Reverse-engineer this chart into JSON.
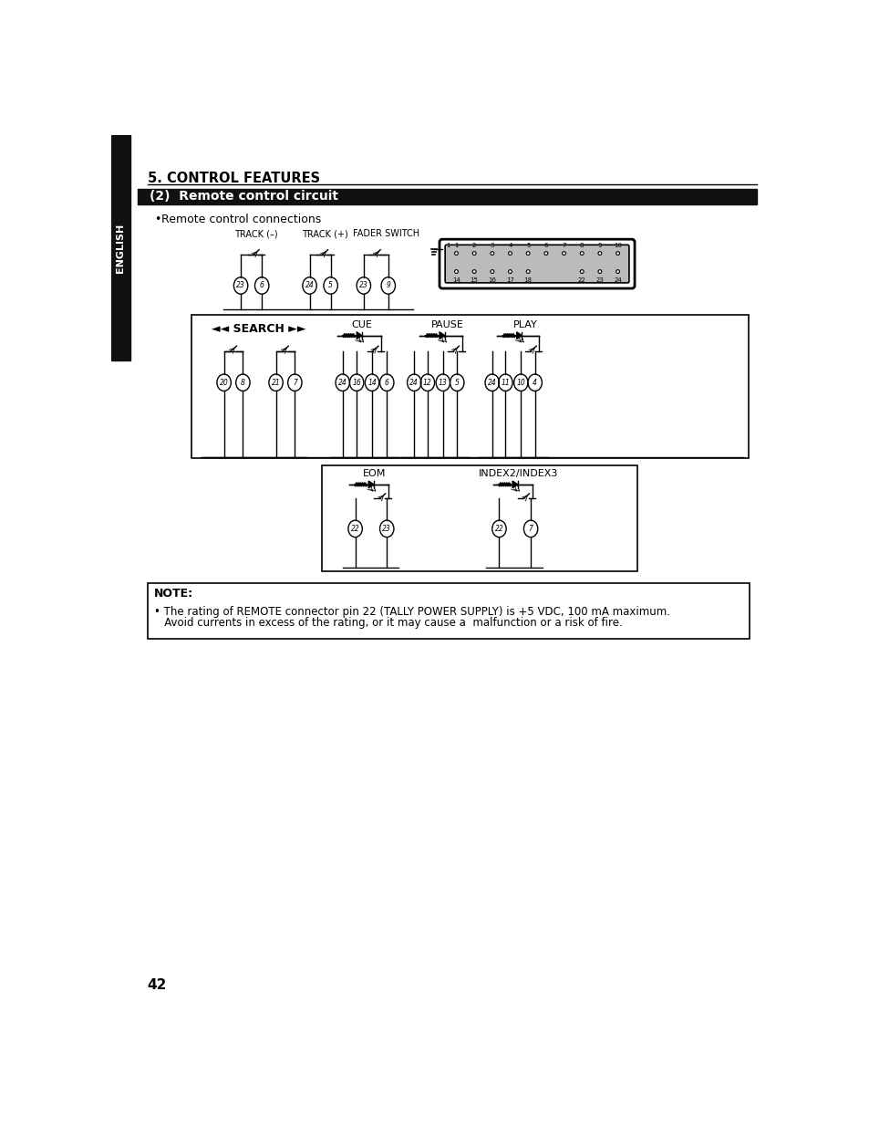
{
  "page_title": "5. CONTROL FEATURES",
  "section_title": "(2)  Remote control circuit",
  "bullet_text": "Remote control connections",
  "note_title": "NOTE:",
  "note_line1": "• The rating of REMOTE connector pin 22 (TALLY POWER SUPPLY) is +5 VDC, 100 mA maximum.",
  "note_line2": "   Avoid currents in excess of the rating, or it may cause a  malfunction or a risk of fire.",
  "page_number": "42",
  "sidebar_text": "ENGLISH",
  "label_track_minus": "TRACK (–)",
  "label_track_plus": "TRACK (+)",
  "label_fader": "FADER SWITCH",
  "label_search": "◄◄ SEARCH ►►",
  "label_cue": "CUE",
  "label_pause": "PAUSE",
  "label_play": "PLAY",
  "label_eom": "EOM",
  "label_index": "INDEX2/INDEX3",
  "bg_color": "#ffffff",
  "sidebar_bg": "#111111",
  "header_bg": "#111111",
  "black": "#000000"
}
